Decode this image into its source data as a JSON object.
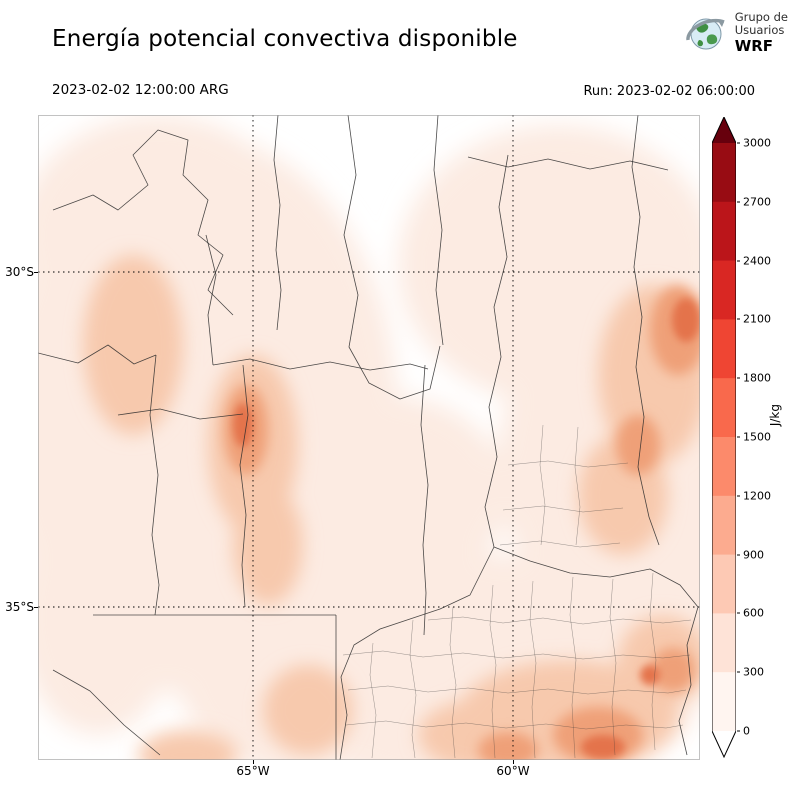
{
  "header": {
    "title": "Energía potencial convectiva disponible",
    "logo": {
      "line1": "Grupo de",
      "line2": "Usuarios",
      "line3": "WRF"
    }
  },
  "times": {
    "valid": "2023-02-02 12:00:00 ARG",
    "run": "Run: 2023-02-02 06:00:00"
  },
  "map": {
    "lat_ticks": [
      "30°S",
      "35°S"
    ],
    "lon_ticks": [
      "65°W",
      "60°W"
    ]
  },
  "colorbar": {
    "unit": "J/kg",
    "levels": [
      0,
      300,
      600,
      900,
      1200,
      1500,
      1800,
      2100,
      2400,
      2700,
      3000
    ],
    "bin_colors": [
      "#fff5f0",
      "#fee3d7",
      "#fdc9b4",
      "#fcab8f",
      "#fc8a6b",
      "#f9694c",
      "#ef4533",
      "#d92723",
      "#bb151a",
      "#980c13"
    ],
    "over_color": "#67000d",
    "under_color": "#ffffff"
  },
  "chart_data": {
    "type": "heatmap",
    "title": "Energía potencial convectiva disponible",
    "units": "J/kg",
    "valid_time": "2023-02-02 12:00:00 ARG",
    "run_time": "2023-02-02 06:00:00",
    "colorbar_levels": [
      0,
      300,
      600,
      900,
      1200,
      1500,
      1800,
      2100,
      2400,
      2700,
      3000
    ],
    "lat_tick_labels": [
      "30°S",
      "35°S"
    ],
    "lon_tick_labels": [
      "65°W",
      "60°W"
    ]
  }
}
